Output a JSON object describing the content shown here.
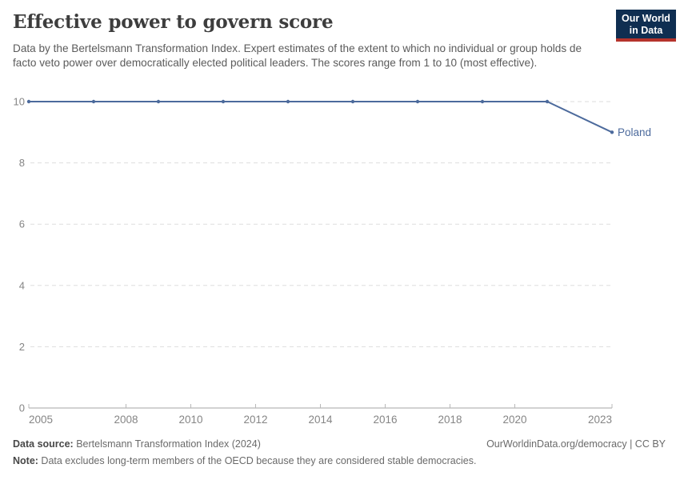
{
  "header": {
    "title": "Effective power to govern score",
    "subtitle": "Data by the Bertelsmann Transformation Index. Expert estimates of the extent to which no individual or group holds de facto veto power over democratically elected political leaders. The scores range from 1 to 10 (most effective)."
  },
  "logo": {
    "line1": "Our World",
    "line2": "in Data",
    "background_color": "#0f2e51",
    "accent_color": "#b5332c"
  },
  "chart_data": {
    "type": "line",
    "title": "Effective power to govern score",
    "x": [
      2005,
      2007,
      2009,
      2011,
      2013,
      2015,
      2017,
      2019,
      2021,
      2023
    ],
    "series": [
      {
        "name": "Poland",
        "values": [
          10,
          10,
          10,
          10,
          10,
          10,
          10,
          10,
          10,
          9
        ],
        "color": "#4c6a9c"
      }
    ],
    "xlim": [
      2005,
      2023
    ],
    "ylim": [
      0,
      10
    ],
    "yticks": [
      0,
      2,
      4,
      6,
      8,
      10
    ],
    "xticks": [
      2005,
      2008,
      2010,
      2012,
      2014,
      2016,
      2018,
      2020,
      2023
    ],
    "grid": "dashed-horizontal",
    "legend_position": "end-of-line-label",
    "end_label": "Poland",
    "grid_color": "#dedede",
    "axis_color": "#a5a5a5",
    "tick_label_color": "#858585"
  },
  "footer": {
    "source_label": "Data source:",
    "source_text": " Bertelsmann Transformation Index (2024)",
    "right_text": "OurWorldinData.org/democracy | CC BY",
    "note_label": "Note:",
    "note_text": " Data excludes long-term members of the OECD because they are considered stable democracies."
  }
}
